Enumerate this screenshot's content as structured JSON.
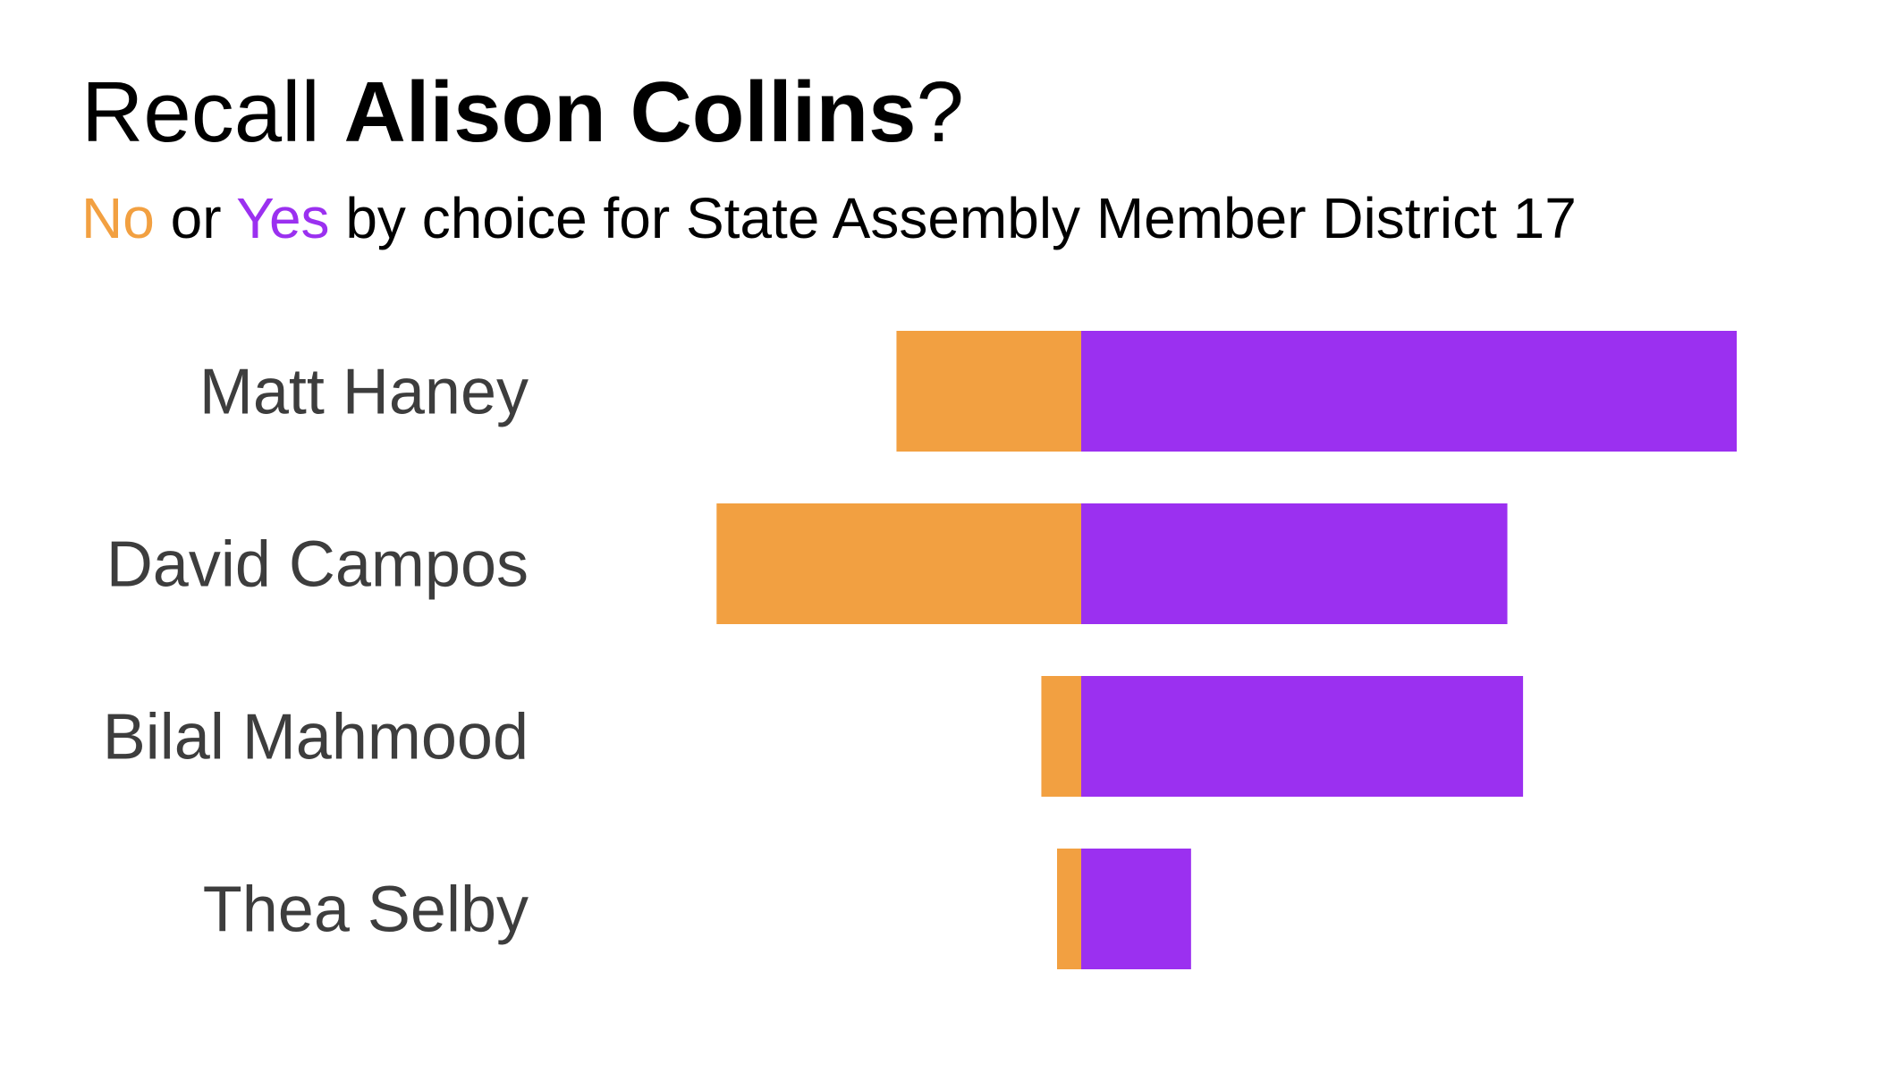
{
  "title": {
    "prefix": "Recall ",
    "bold": "Alison Collins",
    "suffix": "?"
  },
  "subtitle": {
    "no_word": "No",
    "middle": " or ",
    "yes_word": "Yes",
    "rest": " by choice for State Assembly Member District 17"
  },
  "colors": {
    "no": "#f2a041",
    "yes": "#9b30f0",
    "text": "#000000",
    "label": "#3d3d3d"
  },
  "chart_data": {
    "type": "bar",
    "orientation": "horizontal-diverging",
    "categories": [
      "Matt Haney",
      "David Campos",
      "Bilal Mahmood",
      "Thea Selby"
    ],
    "series": [
      {
        "name": "No",
        "values": [
          153,
          302,
          33,
          20
        ]
      },
      {
        "name": "Yes",
        "values": [
          543,
          353,
          366,
          91
        ]
      }
    ],
    "xlim": [
      -302,
      543
    ],
    "grid": false,
    "legend": "subtitle"
  }
}
